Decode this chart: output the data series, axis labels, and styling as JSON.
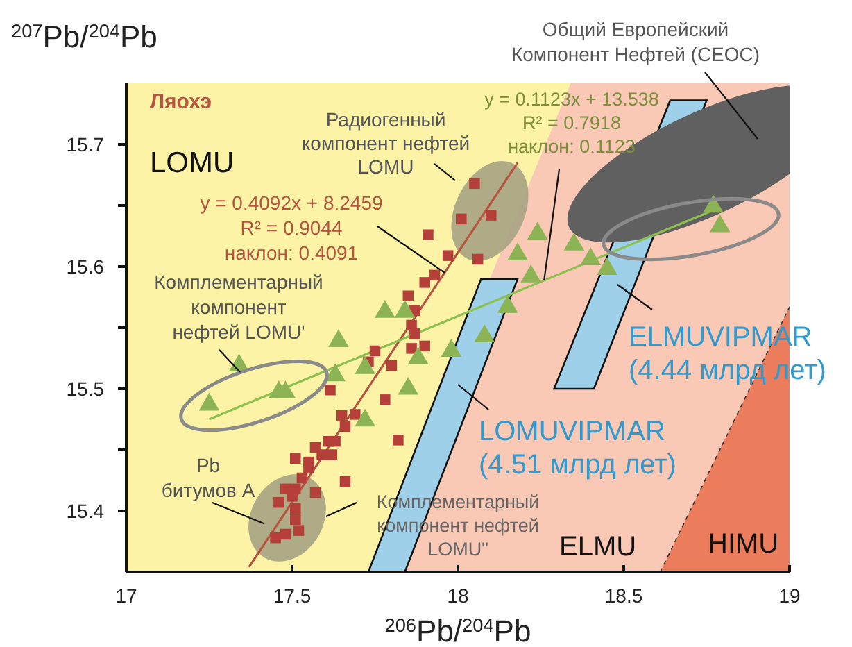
{
  "chart_data": {
    "type": "scatter",
    "xlabel": "$^{206}$Pb/$^{204}$Pb",
    "ylabel": "$^{207}$Pb/$^{204}$Pb",
    "xlim": [
      17,
      19
    ],
    "ylim": [
      15.35,
      15.75
    ],
    "xticks": [
      17,
      17.5,
      18,
      18.5,
      19
    ],
    "yticks": [
      15.4,
      {
        "value": 15.45,
        "label": null
      },
      15.5,
      {
        "value": 15.55,
        "label": null
      },
      15.6,
      {
        "value": 15.65,
        "label": null
      },
      15.7
    ],
    "series": [
      {
        "marker": "square",
        "color": "#b5403a",
        "x": [
          18.05,
          18.01,
          18.1,
          17.91,
          18.06,
          17.97,
          17.93,
          17.9,
          17.85,
          17.87,
          17.86,
          17.87,
          17.86,
          17.9,
          17.75,
          17.73,
          17.8,
          17.615,
          17.78,
          17.65,
          17.69,
          17.66,
          17.82,
          17.57,
          17.61,
          17.63,
          17.62,
          17.59,
          17.51,
          17.55,
          17.55,
          17.53,
          17.66,
          17.51,
          17.48,
          17.57,
          17.5,
          17.46,
          17.51,
          17.51,
          17.52,
          17.48,
          17.45
        ],
        "values": [
          15.668,
          15.639,
          15.642,
          15.626,
          15.606,
          15.609,
          15.593,
          15.587,
          15.576,
          15.564,
          15.552,
          15.545,
          15.533,
          15.535,
          15.531,
          15.522,
          15.519,
          15.499,
          15.491,
          15.478,
          15.479,
          15.469,
          15.458,
          15.452,
          15.457,
          15.457,
          15.446,
          15.446,
          15.443,
          15.44,
          15.435,
          15.427,
          15.424,
          15.418,
          15.418,
          15.415,
          15.412,
          15.407,
          15.402,
          15.393,
          15.384,
          15.381,
          15.378
        ]
      },
      {
        "marker": "triangle",
        "color": "#8cb455",
        "x": [
          18.18,
          17.78,
          17.84,
          18.15,
          17.64,
          18.08,
          17.98,
          17.88,
          17.34,
          17.72,
          17.63,
          17.85,
          17.48,
          17.46,
          17.25,
          17.72,
          18.77,
          18.79,
          18.24,
          18.35,
          18.22,
          18.4,
          18.45
        ],
        "values": [
          15.61,
          15.563,
          15.563,
          15.567,
          15.539,
          15.543,
          15.531,
          15.525,
          15.519,
          15.517,
          15.511,
          15.5,
          15.497,
          15.497,
          15.487,
          15.474,
          15.649,
          15.633,
          15.627,
          15.618,
          15.592,
          15.606,
          15.598
        ]
      },
      {
        "type": "line",
        "color": "#b5553f",
        "x": [
          17.37,
          18.18
        ],
        "values": [
          15.354,
          15.685
        ]
      },
      {
        "type": "line",
        "color": "#8cc04f",
        "x": [
          17.25,
          18.76
        ],
        "values": [
          15.475,
          15.645
        ]
      }
    ],
    "annotations": [
      "Ляохэ",
      "LOMU",
      "Радиогенный\nкомпонент нефтей\nLOMU",
      {
        "text": "y = 0.4092x + 8.2459\nR² = 0.9044\nнаклон: 0.4091",
        "x": 17.96,
        "y": 15.595
      },
      {
        "text": "y = 0.1123x + 13.538\nR² = 0.7918\nнаклон: 0.1123",
        "x": 18.26,
        "y": 15.589
      },
      "Общий Европейский\nКомпонент Нефтей (CEOC)",
      "Комплементарный\nкомпонент\nнефтей LOMU'",
      "Pb\nбитумов А",
      "Комплементарный\nкомпонент нефтей\nLOMU\"",
      "LOMUVIPMAR\n(4.51 млрд лет)",
      "ELMUVIPMAR\n(4.44 млрд лет)",
      "ELMU",
      "HIMU"
    ]
  }
}
